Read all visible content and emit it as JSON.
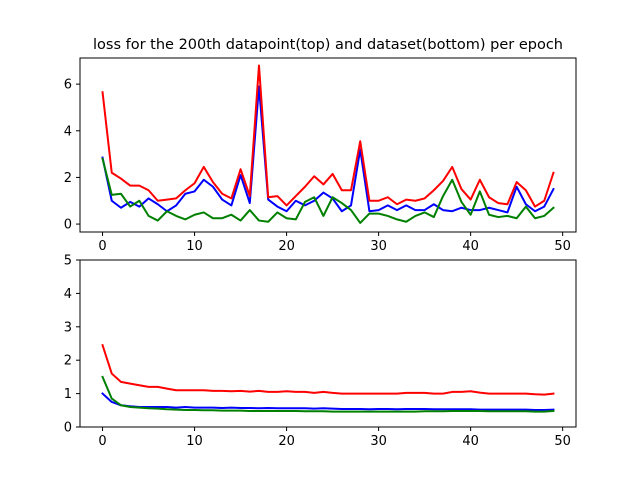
{
  "chart_data": [
    {
      "type": "line",
      "title": "loss for the 200th datapoint(top) and dataset(bottom) per epoch",
      "xlabel": "",
      "ylabel": "",
      "xlim": [
        -2.45,
        51.45
      ],
      "ylim": [
        -0.34,
        7.12
      ],
      "xticks": [
        0,
        10,
        20,
        30,
        40,
        50
      ],
      "yticks": [
        0,
        2,
        4,
        6
      ],
      "grid": false,
      "x": [
        0,
        1,
        2,
        3,
        4,
        5,
        6,
        7,
        8,
        9,
        10,
        11,
        12,
        13,
        14,
        15,
        16,
        17,
        18,
        19,
        20,
        21,
        22,
        23,
        24,
        25,
        26,
        27,
        28,
        29,
        30,
        31,
        32,
        33,
        34,
        35,
        36,
        37,
        38,
        39,
        40,
        41,
        42,
        43,
        44,
        45,
        46,
        47,
        48,
        49
      ],
      "series": [
        {
          "color": "#0000ff",
          "values": [
            2.85,
            1.0,
            0.7,
            0.95,
            0.75,
            1.1,
            0.85,
            0.55,
            0.8,
            1.3,
            1.4,
            1.9,
            1.6,
            1.05,
            0.8,
            2.1,
            0.9,
            5.9,
            1.05,
            0.75,
            0.55,
            1.0,
            0.8,
            1.0,
            1.35,
            1.1,
            0.55,
            0.8,
            3.2,
            0.55,
            0.6,
            0.8,
            0.6,
            0.8,
            0.6,
            0.6,
            0.85,
            0.6,
            0.55,
            0.7,
            0.6,
            0.6,
            0.7,
            0.6,
            0.5,
            1.6,
            0.85,
            0.55,
            0.75,
            1.5
          ]
        },
        {
          "color": "#ff0000",
          "values": [
            5.65,
            2.2,
            1.95,
            1.65,
            1.65,
            1.45,
            1.0,
            1.05,
            1.1,
            1.45,
            1.75,
            2.45,
            1.8,
            1.3,
            1.1,
            2.35,
            1.2,
            6.8,
            1.15,
            1.2,
            0.8,
            1.2,
            1.6,
            2.05,
            1.7,
            2.15,
            1.45,
            1.45,
            3.55,
            1.0,
            1.0,
            1.15,
            0.85,
            1.05,
            1.0,
            1.1,
            1.45,
            1.85,
            2.45,
            1.5,
            1.05,
            1.9,
            1.15,
            0.9,
            0.85,
            1.8,
            1.45,
            0.75,
            1.0,
            2.2
          ]
        },
        {
          "color": "#008000",
          "values": [
            2.8,
            1.25,
            1.3,
            0.75,
            1.0,
            0.35,
            0.15,
            0.55,
            0.35,
            0.2,
            0.4,
            0.5,
            0.25,
            0.25,
            0.4,
            0.15,
            0.6,
            0.15,
            0.1,
            0.5,
            0.25,
            0.2,
            0.95,
            1.15,
            0.35,
            1.15,
            0.9,
            0.6,
            0.05,
            0.45,
            0.45,
            0.35,
            0.2,
            0.1,
            0.35,
            0.5,
            0.3,
            1.2,
            1.9,
            0.95,
            0.4,
            1.4,
            0.4,
            0.3,
            0.35,
            0.25,
            0.75,
            0.25,
            0.35,
            0.7
          ]
        }
      ]
    },
    {
      "type": "line",
      "title": "",
      "xlabel": "",
      "ylabel": "",
      "xlim": [
        -2.45,
        51.45
      ],
      "ylim": [
        0,
        5
      ],
      "xticks": [
        0,
        10,
        20,
        30,
        40,
        50
      ],
      "yticks": [
        0,
        1,
        2,
        3,
        4,
        5
      ],
      "grid": false,
      "x": [
        0,
        1,
        2,
        3,
        4,
        5,
        6,
        7,
        8,
        9,
        10,
        11,
        12,
        13,
        14,
        15,
        16,
        17,
        18,
        19,
        20,
        21,
        22,
        23,
        24,
        25,
        26,
        27,
        28,
        29,
        30,
        31,
        32,
        33,
        34,
        35,
        36,
        37,
        38,
        39,
        40,
        41,
        42,
        43,
        44,
        45,
        46,
        47,
        48,
        49
      ],
      "series": [
        {
          "color": "#ff0000",
          "values": [
            2.45,
            1.6,
            1.35,
            1.3,
            1.25,
            1.2,
            1.2,
            1.15,
            1.1,
            1.1,
            1.1,
            1.1,
            1.08,
            1.08,
            1.07,
            1.08,
            1.06,
            1.08,
            1.05,
            1.05,
            1.07,
            1.05,
            1.05,
            1.02,
            1.05,
            1.02,
            1.0,
            1.0,
            1.0,
            1.0,
            1.0,
            1.0,
            1.0,
            1.02,
            1.02,
            1.02,
            1.0,
            1.0,
            1.05,
            1.05,
            1.07,
            1.03,
            1.0,
            1.0,
            1.0,
            1.0,
            1.0,
            0.98,
            0.97,
            1.0
          ]
        },
        {
          "color": "#0000ff",
          "values": [
            1.0,
            0.75,
            0.65,
            0.62,
            0.6,
            0.6,
            0.6,
            0.6,
            0.58,
            0.6,
            0.58,
            0.58,
            0.58,
            0.57,
            0.58,
            0.57,
            0.57,
            0.56,
            0.57,
            0.56,
            0.56,
            0.56,
            0.56,
            0.55,
            0.56,
            0.55,
            0.54,
            0.54,
            0.54,
            0.53,
            0.54,
            0.54,
            0.53,
            0.54,
            0.54,
            0.54,
            0.53,
            0.53,
            0.53,
            0.53,
            0.53,
            0.52,
            0.52,
            0.52,
            0.52,
            0.52,
            0.52,
            0.51,
            0.51,
            0.52
          ]
        },
        {
          "color": "#008000",
          "values": [
            1.5,
            0.85,
            0.65,
            0.6,
            0.58,
            0.56,
            0.55,
            0.53,
            0.52,
            0.51,
            0.51,
            0.5,
            0.5,
            0.49,
            0.49,
            0.49,
            0.48,
            0.48,
            0.48,
            0.48,
            0.48,
            0.48,
            0.47,
            0.47,
            0.47,
            0.46,
            0.46,
            0.46,
            0.46,
            0.46,
            0.46,
            0.46,
            0.46,
            0.46,
            0.46,
            0.47,
            0.47,
            0.47,
            0.48,
            0.48,
            0.48,
            0.48,
            0.47,
            0.47,
            0.47,
            0.47,
            0.47,
            0.46,
            0.46,
            0.48
          ]
        }
      ]
    }
  ]
}
